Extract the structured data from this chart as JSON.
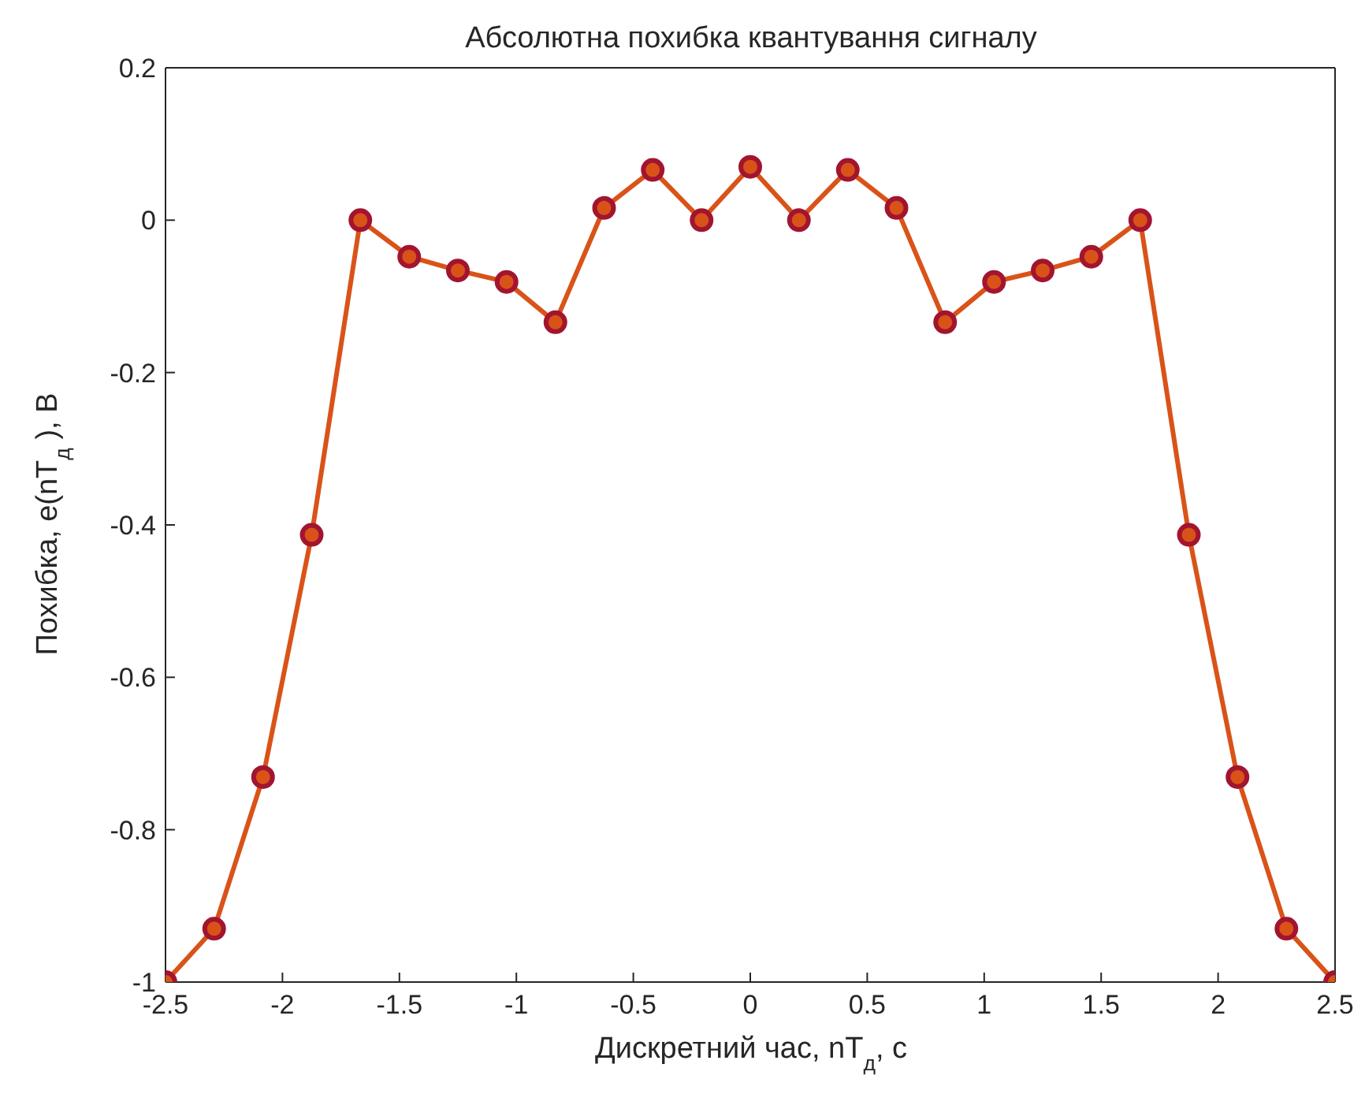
{
  "chart_data": {
    "type": "line",
    "title": "Абсолютна похибка квантування сигналу",
    "xlabel": "Дискретний час, nT$_{д}$, с",
    "ylabel": "Похибка, e(nT$_{д}$ ), В",
    "x": [
      -2.5,
      -2.292,
      -2.083,
      -1.875,
      -1.667,
      -1.458,
      -1.25,
      -1.042,
      -0.833,
      -0.625,
      -0.417,
      -0.208,
      0,
      0.208,
      0.417,
      0.625,
      0.833,
      1.042,
      1.25,
      1.458,
      1.667,
      1.875,
      2.083,
      2.292,
      2.5
    ],
    "series": [
      {
        "color": "#d95319",
        "values": [
          -1,
          -0.93,
          -0.731,
          -0.413,
          0,
          -0.048,
          -0.066,
          -0.081,
          -0.134,
          0.016,
          0.066,
          0,
          0.07,
          0,
          0.066,
          0.016,
          -0.134,
          -0.081,
          -0.066,
          -0.048,
          0,
          -0.413,
          -0.731,
          -0.93,
          -1
        ]
      }
    ],
    "xlim": [
      -2.5,
      2.5
    ],
    "xticks": [
      -2.5,
      -2,
      -1.5,
      -1,
      -0.5,
      0,
      0.5,
      1,
      1.5,
      2,
      2.5
    ],
    "ylim": [
      -1,
      0.2
    ],
    "yticks": [
      -1,
      -0.8,
      -0.6,
      -0.4,
      -0.2,
      0,
      0.2
    ],
    "grid": false,
    "legend": false,
    "marker": "circle",
    "line_style": "solid"
  }
}
